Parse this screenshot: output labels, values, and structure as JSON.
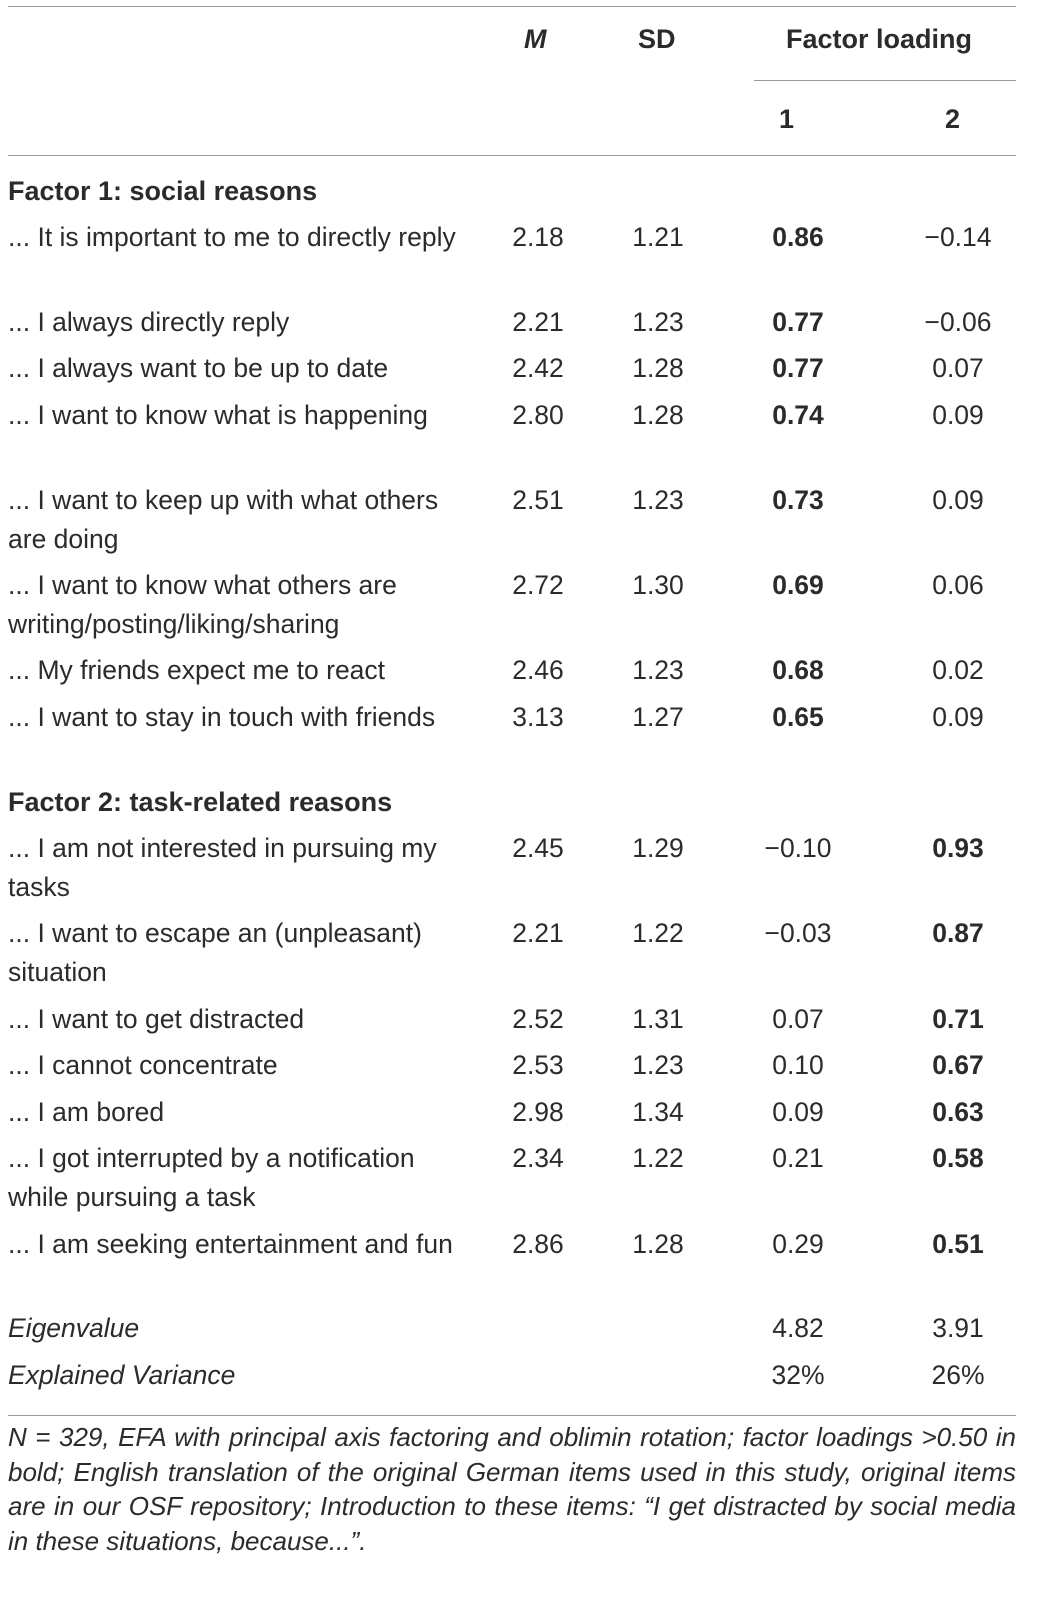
{
  "header": {
    "m_label": "M",
    "sd_label": "SD",
    "factor_loading_label": "Factor loading",
    "factor1_label": "1",
    "factor2_label": "2"
  },
  "sections": [
    {
      "title": "Factor 1: social reasons",
      "rows": [
        {
          "item": "... It is important to me to directly reply",
          "m": "2.18",
          "sd": "1.21",
          "f1": "0.86",
          "f2": "−0.14"
        },
        {
          "item": "... I always directly reply",
          "m": "2.21",
          "sd": "1.23",
          "f1": "0.77",
          "f2": "−0.06"
        },
        {
          "item": "... I always want to be up to date",
          "m": "2.42",
          "sd": "1.28",
          "f1": "0.77",
          "f2": "0.07"
        },
        {
          "item": "... I want to know what is happening",
          "m": "2.80",
          "sd": "1.28",
          "f1": "0.74",
          "f2": "0.09"
        },
        {
          "item": "... I want to keep up with what others are doing",
          "m": "2.51",
          "sd": "1.23",
          "f1": "0.73",
          "f2": "0.09"
        },
        {
          "item": "... I want to know what others are writing/posting/liking/sharing",
          "m": "2.72",
          "sd": "1.30",
          "f1": "0.69",
          "f2": "0.06"
        },
        {
          "item": "... My friends expect me to react",
          "m": "2.46",
          "sd": "1.23",
          "f1": "0.68",
          "f2": "0.02"
        },
        {
          "item": "... I want to stay in touch with friends",
          "m": "3.13",
          "sd": "1.27",
          "f1": "0.65",
          "f2": "0.09"
        }
      ]
    },
    {
      "title": "Factor 2: task-related reasons",
      "rows": [
        {
          "item": "... I am not interested in pursuing my tasks",
          "m": "2.45",
          "sd": "1.29",
          "f1": "−0.10",
          "f2": "0.93"
        },
        {
          "item": "... I want to escape an (unpleasant) situation",
          "m": "2.21",
          "sd": "1.22",
          "f1": "−0.03",
          "f2": "0.87"
        },
        {
          "item": "... I want to get distracted",
          "m": "2.52",
          "sd": "1.31",
          "f1": "0.07",
          "f2": "0.71"
        },
        {
          "item": "... I cannot concentrate",
          "m": "2.53",
          "sd": "1.23",
          "f1": "0.10",
          "f2": "0.67"
        },
        {
          "item": "... I am bored",
          "m": "2.98",
          "sd": "1.34",
          "f1": "0.09",
          "f2": "0.63"
        },
        {
          "item": "... I got interrupted by a notification while pursuing a task",
          "m": "2.34",
          "sd": "1.22",
          "f1": "0.21",
          "f2": "0.58"
        },
        {
          "item": "... I am seeking entertainment and fun",
          "m": "2.86",
          "sd": "1.28",
          "f1": "0.29",
          "f2": "0.51"
        }
      ]
    }
  ],
  "summary": [
    {
      "label": "Eigenvalue",
      "f1": "4.82",
      "f2": "3.91"
    },
    {
      "label": "Explained Variance",
      "f1": "32%",
      "f2": "26%"
    }
  ],
  "note": "N = 329, EFA with principal axis factoring and oblimin rotation; factor loadings >0.50 in bold; English translation of the original German items used in this study, original items are in our OSF repository; Introduction to these items: “I get distracted by social media in these situations, because...”."
}
